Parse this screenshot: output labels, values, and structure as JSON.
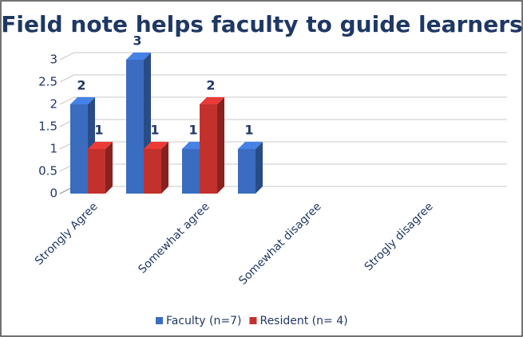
{
  "chart_data": {
    "type": "bar3d",
    "title": "Field note helps faculty to guide learners",
    "categories": [
      "Strongly Agree",
      null,
      "Somewhat agree",
      null,
      "Somewhat disagree",
      null,
      "Strogly disagree",
      null
    ],
    "series": [
      {
        "name": "Faculty (n=7)",
        "color": "#3a6cc0",
        "values": [
          2,
          3,
          1,
          1,
          null,
          null,
          null,
          null
        ]
      },
      {
        "name": "Resident (n= 4)",
        "color": "#c3312d",
        "values": [
          1,
          1,
          2,
          null,
          null,
          null,
          null,
          null
        ]
      }
    ],
    "ylim": [
      0,
      3
    ],
    "yticks": [
      0,
      0.5,
      1,
      1.5,
      2,
      2.5,
      3
    ],
    "grid": true,
    "legend": "bottom"
  }
}
